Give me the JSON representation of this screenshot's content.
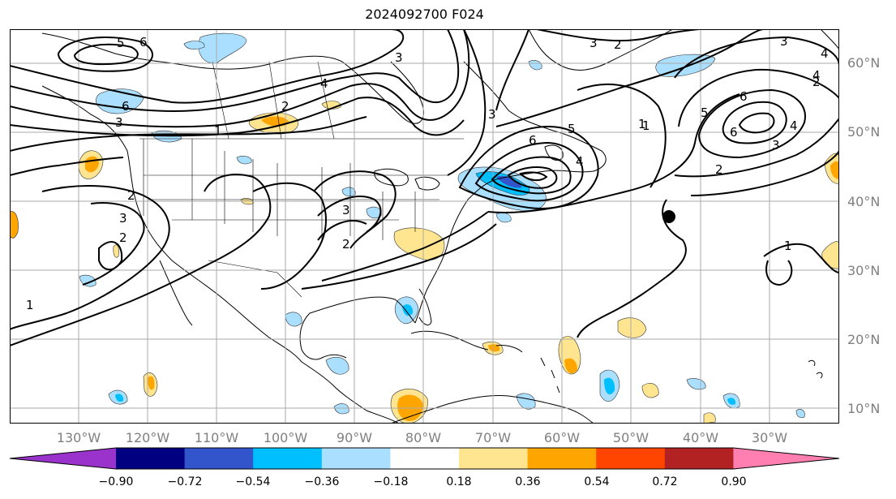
{
  "title": "2024092700 F024",
  "lat_labels": [
    "60°N",
    "50°N",
    "40°N",
    "30°N",
    "20°N",
    "10°N"
  ],
  "lon_labels": [
    "130°W",
    "120°W",
    "110°W",
    "100°W",
    "90°W",
    "80°W",
    "70°W",
    "60°W",
    "50°W",
    "40°W",
    "30°W"
  ],
  "colorbar": {
    "colors": [
      "#9933cc",
      "#000080",
      "#3355cc",
      "#00bfff",
      "#aadfff",
      "#ffffff",
      "#ffe58f",
      "#ffa500",
      "#ff4500",
      "#b22222",
      "#ff80b0"
    ],
    "ticks": [
      "−0.90",
      "−0.72",
      "−0.54",
      "−0.36",
      "−0.18",
      "0.18",
      "0.36",
      "0.54",
      "0.72",
      "0.90"
    ]
  },
  "contour_labels": [
    "5",
    "6",
    "4",
    "6",
    "3",
    "2",
    "1",
    "3",
    "2",
    "3",
    "3",
    "2",
    "1",
    "5",
    "6",
    "4",
    "3",
    "2",
    "2",
    "3",
    "4",
    "6",
    "5",
    "6",
    "4",
    "3",
    "2",
    "1",
    "1",
    "3",
    "2",
    "1",
    "4"
  ],
  "storm_marker": "black-dot"
}
